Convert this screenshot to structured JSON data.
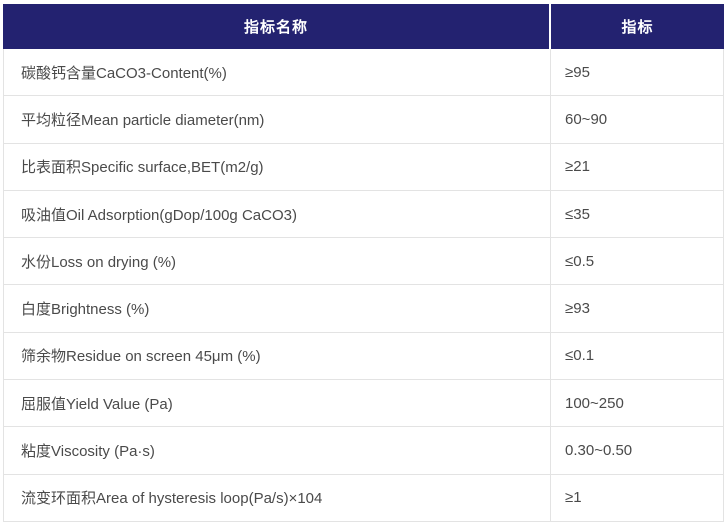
{
  "page": {
    "background": "#ffffff"
  },
  "table": {
    "header": {
      "name_label": "指标名称",
      "value_label": "指标",
      "background_color": "#232270",
      "text_color": "#ffffff",
      "divider_color": "#ffffff"
    },
    "style": {
      "border_color": "#e3e3e3",
      "body_text_color": "#4a4a4a"
    },
    "rows": [
      {
        "name": "碳酸钙含量CaCO3-Content(%)",
        "value": "≥95"
      },
      {
        "name": "平均粒径Mean particle diameter(nm)",
        "value": "60~90"
      },
      {
        "name": "比表面积Specific surface,BET(m2/g)",
        "value": "≥21"
      },
      {
        "name": "吸油值Oil Adsorption(gDop/100g CaCO3)",
        "value": "≤35"
      },
      {
        "name": "水份Loss on drying (%)",
        "value": "≤0.5"
      },
      {
        "name": "白度Brightness (%)",
        "value": "≥93"
      },
      {
        "name": "筛余物Residue on screen 45μm (%)",
        "value": "≤0.1"
      },
      {
        "name": "屈服值Yield Value (Pa)",
        "value": "100~250"
      },
      {
        "name": "粘度Viscosity (Pa·s)",
        "value": "0.30~0.50"
      },
      {
        "name": "流变环面积Area of hysteresis loop(Pa/s)×104",
        "value": "≥1"
      }
    ]
  }
}
